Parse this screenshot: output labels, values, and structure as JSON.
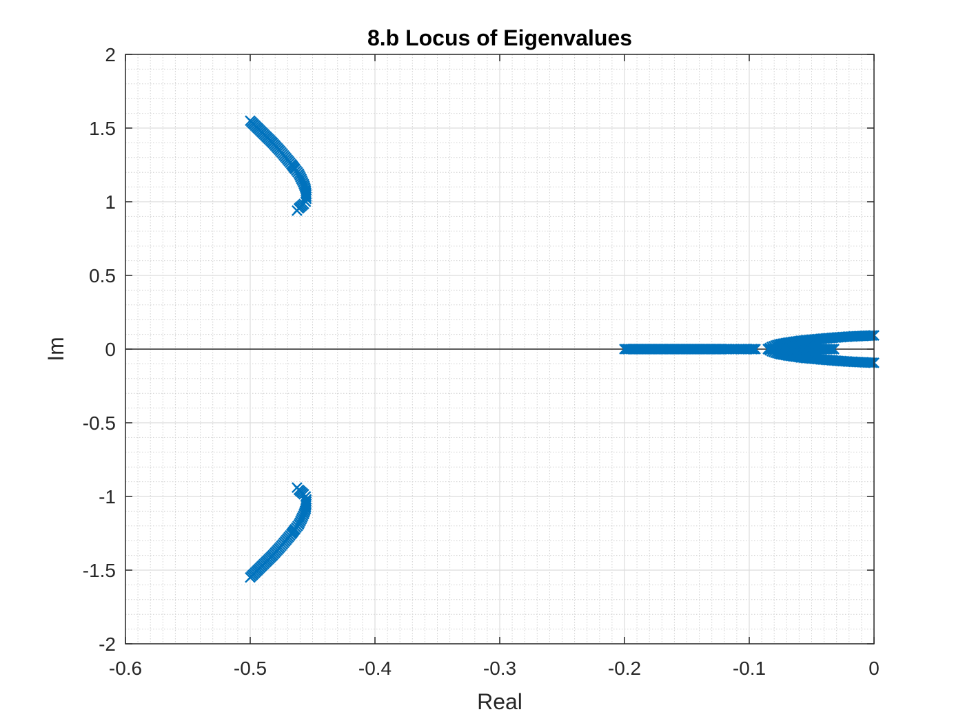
{
  "chart_data": {
    "type": "scatter",
    "title": "8.b Locus of Eigenvalues",
    "xlabel": "Real",
    "ylabel": "Im",
    "xlim": [
      -0.6,
      0
    ],
    "ylim": [
      -2,
      2
    ],
    "xticks": [
      "-0.6",
      "-0.5",
      "-0.4",
      "-0.3",
      "-0.2",
      "-0.1",
      "0"
    ],
    "yticks": [
      "2",
      "1.5",
      "1",
      "0.5",
      "0",
      "-0.5",
      "-1",
      "-1.5",
      "-2"
    ],
    "grid": true,
    "minor_grid": true,
    "marker": "x",
    "marker_color": "#0072BD",
    "series": [
      {
        "x": [
          -0.5,
          -0.497,
          -0.494,
          -0.491,
          -0.488,
          -0.485,
          -0.482,
          -0.479,
          -0.476,
          -0.473,
          -0.47,
          -0.467,
          -0.464,
          -0.461,
          -0.459,
          -0.457,
          -0.4555,
          -0.455,
          -0.455,
          -0.4555,
          -0.457,
          -0.459,
          -0.461,
          -0.4625
        ],
        "y": [
          1.55,
          1.525,
          1.5,
          1.475,
          1.45,
          1.425,
          1.4,
          1.372,
          1.345,
          1.315,
          1.285,
          1.255,
          1.222,
          1.19,
          1.155,
          1.12,
          1.085,
          1.05,
          1.02,
          1.0,
          0.985,
          0.97,
          0.955,
          0.94
        ]
      },
      {
        "x": [
          -0.5,
          -0.497,
          -0.494,
          -0.491,
          -0.488,
          -0.485,
          -0.482,
          -0.479,
          -0.476,
          -0.473,
          -0.47,
          -0.467,
          -0.464,
          -0.461,
          -0.459,
          -0.457,
          -0.4555,
          -0.455,
          -0.455,
          -0.4555,
          -0.457,
          -0.459,
          -0.461,
          -0.4625
        ],
        "y": [
          -1.55,
          -1.525,
          -1.5,
          -1.475,
          -1.45,
          -1.425,
          -1.4,
          -1.372,
          -1.345,
          -1.315,
          -1.285,
          -1.255,
          -1.222,
          -1.19,
          -1.155,
          -1.12,
          -1.085,
          -1.05,
          -1.02,
          -1.0,
          -0.985,
          -0.97,
          -0.955,
          -0.94
        ]
      },
      {
        "x": [
          -0.2,
          -0.195,
          -0.19,
          -0.185,
          -0.18,
          -0.175,
          -0.17,
          -0.165,
          -0.16,
          -0.155,
          -0.15,
          -0.145,
          -0.14,
          -0.135,
          -0.13,
          -0.125,
          -0.12,
          -0.116,
          -0.112,
          -0.108,
          -0.104,
          -0.1,
          -0.095
        ],
        "y": [
          0,
          0,
          0,
          0,
          0,
          0,
          0,
          0,
          0,
          0,
          0,
          0,
          0,
          0,
          0,
          0,
          0,
          0,
          0,
          0,
          0,
          0,
          0
        ]
      },
      {
        "x": [
          -0.085,
          -0.082,
          -0.079,
          -0.076,
          -0.072,
          -0.068,
          -0.064,
          -0.06,
          -0.055,
          -0.05,
          -0.045,
          -0.04,
          -0.035,
          -0.03,
          -0.025,
          -0.02,
          -0.015,
          -0.01,
          -0.005,
          0.0
        ],
        "y": [
          0.0,
          0.015,
          0.025,
          0.032,
          0.039,
          0.045,
          0.05,
          0.055,
          0.06,
          0.064,
          0.068,
          0.072,
          0.075,
          0.079,
          0.082,
          0.085,
          0.087,
          0.089,
          0.091,
          0.093
        ]
      },
      {
        "x": [
          -0.085,
          -0.082,
          -0.079,
          -0.076,
          -0.072,
          -0.068,
          -0.064,
          -0.06,
          -0.055,
          -0.05,
          -0.045,
          -0.04,
          -0.035,
          -0.03,
          -0.025,
          -0.02,
          -0.015,
          -0.01,
          -0.005,
          0.0
        ],
        "y": [
          0.0,
          -0.015,
          -0.025,
          -0.032,
          -0.039,
          -0.045,
          -0.05,
          -0.055,
          -0.06,
          -0.064,
          -0.068,
          -0.072,
          -0.075,
          -0.079,
          -0.082,
          -0.085,
          -0.087,
          -0.089,
          -0.091,
          -0.093
        ]
      },
      {
        "x": [
          -0.085,
          -0.075,
          -0.065,
          -0.055,
          -0.045,
          -0.035,
          -0.032
        ],
        "y": [
          0,
          0,
          0,
          0,
          0,
          0,
          0
        ]
      }
    ]
  }
}
